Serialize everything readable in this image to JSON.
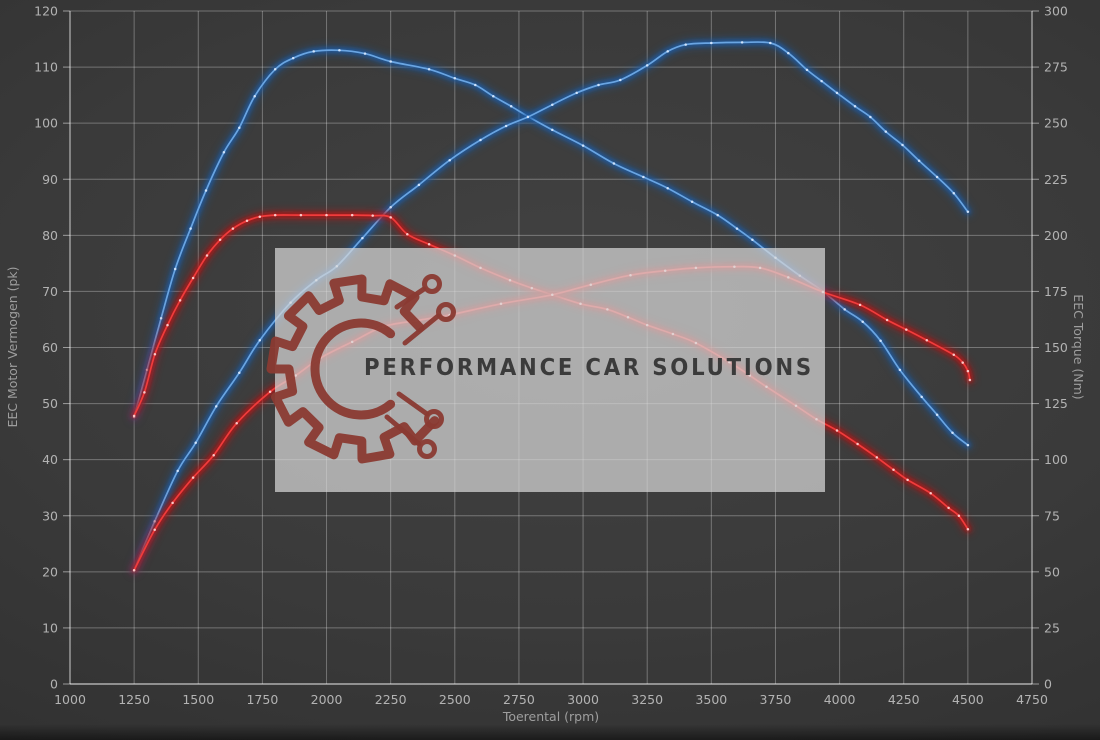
{
  "watermark": {
    "text": "PERFORMANCE CAR SOLUTIONS",
    "logo_icon": "gear-circuit-icon",
    "bg_color": "rgba(215,215,215,0.72)",
    "logo_color": "#8a3a32",
    "text_color": "#3b3b3b"
  },
  "axes": {
    "x": {
      "label": "Toerental (rpm)",
      "min": 1000,
      "max": 4750,
      "step": 250,
      "ticks": [
        "1000",
        "1250",
        "1500",
        "1750",
        "2000",
        "2250",
        "2500",
        "2750",
        "3000",
        "3250",
        "3500",
        "3750",
        "4000",
        "4250",
        "4500",
        "4750"
      ]
    },
    "y_left": {
      "label": "EEC Motor Vermogen (pk)",
      "min": 0,
      "max": 120,
      "step": 10,
      "ticks": [
        "0",
        "10",
        "20",
        "30",
        "40",
        "50",
        "60",
        "70",
        "80",
        "90",
        "100",
        "110",
        "120"
      ]
    },
    "y_right": {
      "label": "EEC Torque (Nm)",
      "min": 0,
      "max": 300,
      "step": 25,
      "ticks": [
        "0",
        "25",
        "50",
        "75",
        "100",
        "125",
        "150",
        "175",
        "200",
        "225",
        "250",
        "275",
        "300"
      ]
    }
  },
  "colors": {
    "background_center": "#424242",
    "background_edge": "#2b2b2b",
    "grid": "rgba(255,255,255,0.30)",
    "axis_line": "rgba(255,255,255,0.50)",
    "tick_text": "#b3b3b3",
    "axis_title": "#9e9e9e",
    "blue_curve": "#6aa5e2",
    "blue_glow": "#1d5ca6",
    "red_curve": "#f03c3c",
    "red_glow": "#b81212"
  },
  "chart_data": {
    "type": "line",
    "title": "",
    "xlabel": "Toerental (rpm)",
    "ylabel_left": "EEC Motor Vermogen (pk)",
    "ylabel_right": "EEC Torque (Nm)",
    "x_range": [
      1000,
      4750
    ],
    "y_left_range": [
      0,
      120
    ],
    "y_right_range": [
      0,
      300
    ],
    "grid": true,
    "legend": "none",
    "peaks": {
      "power_tuned_pk": 114.3,
      "power_original_pk": 74.4,
      "torque_tuned_nm": 282.5,
      "torque_original_nm": 209
    },
    "series": [
      {
        "id": "torque-tuned-blue",
        "unit": "Nm",
        "axis": "right",
        "color": "#6aa5e2",
        "glow": "#1d5ca6",
        "dot": "#d9eaff",
        "points": [
          [
            1250,
            119
          ],
          [
            1300,
            140
          ],
          [
            1355,
            163
          ],
          [
            1410,
            185
          ],
          [
            1470,
            203
          ],
          [
            1530,
            220
          ],
          [
            1600,
            237
          ],
          [
            1660,
            248
          ],
          [
            1720,
            262
          ],
          [
            1800,
            274
          ],
          [
            1870,
            279
          ],
          [
            1950,
            282
          ],
          [
            2050,
            282.5
          ],
          [
            2150,
            281
          ],
          [
            2250,
            277.5
          ],
          [
            2400,
            274
          ],
          [
            2500,
            270
          ],
          [
            2580,
            267
          ],
          [
            2650,
            262
          ],
          [
            2720,
            257.5
          ],
          [
            2785,
            253
          ],
          [
            2880,
            247
          ],
          [
            3000,
            240
          ],
          [
            3120,
            232
          ],
          [
            3235,
            226
          ],
          [
            3330,
            221
          ],
          [
            3425,
            215
          ],
          [
            3525,
            209
          ],
          [
            3600,
            203
          ],
          [
            3660,
            198
          ],
          [
            3750,
            190
          ],
          [
            3845,
            182
          ],
          [
            3935,
            175
          ],
          [
            4020,
            167
          ],
          [
            4090,
            161.5
          ],
          [
            4160,
            153
          ],
          [
            4235,
            140
          ],
          [
            4320,
            128
          ],
          [
            4380,
            120
          ],
          [
            4440,
            112
          ],
          [
            4500,
            106.5
          ]
        ]
      },
      {
        "id": "power-tuned-blue",
        "unit": "pk",
        "axis": "left",
        "color": "#6aa5e2",
        "glow": "#1d5ca6",
        "dot": "#d9eaff",
        "points": [
          [
            1250,
            20.3
          ],
          [
            1330,
            29
          ],
          [
            1420,
            38
          ],
          [
            1490,
            43
          ],
          [
            1570,
            49.5
          ],
          [
            1660,
            55.5
          ],
          [
            1740,
            61.3
          ],
          [
            1860,
            68
          ],
          [
            1960,
            72
          ],
          [
            2040,
            74.5
          ],
          [
            2140,
            79.5
          ],
          [
            2250,
            85
          ],
          [
            2360,
            89
          ],
          [
            2480,
            93.4
          ],
          [
            2600,
            97
          ],
          [
            2700,
            99.5
          ],
          [
            2785,
            101.1
          ],
          [
            2880,
            103.3
          ],
          [
            2975,
            105.4
          ],
          [
            3060,
            106.8
          ],
          [
            3145,
            107.7
          ],
          [
            3250,
            110.3
          ],
          [
            3330,
            112.8
          ],
          [
            3400,
            114
          ],
          [
            3500,
            114.3
          ],
          [
            3620,
            114.4
          ],
          [
            3730,
            114.3
          ],
          [
            3800,
            112.5
          ],
          [
            3873,
            109.5
          ],
          [
            3930,
            107.5
          ],
          [
            3990,
            105.4
          ],
          [
            4060,
            103
          ],
          [
            4120,
            101.1
          ],
          [
            4180,
            98.5
          ],
          [
            4245,
            96.1
          ],
          [
            4310,
            93.3
          ],
          [
            4380,
            90.4
          ],
          [
            4445,
            87.5
          ],
          [
            4500,
            84.2
          ]
        ]
      },
      {
        "id": "torque-original-red",
        "unit": "Nm",
        "axis": "right",
        "color": "#f03c3c",
        "glow": "#b81212",
        "dot": "#ffd6d6",
        "points": [
          [
            1250,
            119.5
          ],
          [
            1290,
            130
          ],
          [
            1331,
            147
          ],
          [
            1380,
            160
          ],
          [
            1429,
            171
          ],
          [
            1480,
            181
          ],
          [
            1534,
            191
          ],
          [
            1585,
            198
          ],
          [
            1635,
            203
          ],
          [
            1690,
            206.5
          ],
          [
            1740,
            208.3
          ],
          [
            1800,
            209
          ],
          [
            1900,
            209
          ],
          [
            2000,
            209
          ],
          [
            2100,
            209
          ],
          [
            2180,
            208.8
          ],
          [
            2250,
            208
          ],
          [
            2315,
            200.5
          ],
          [
            2400,
            196
          ],
          [
            2500,
            191
          ],
          [
            2600,
            185.5
          ],
          [
            2715,
            180
          ],
          [
            2800,
            176.5
          ],
          [
            2880,
            173.5
          ],
          [
            2990,
            169.5
          ],
          [
            3095,
            167
          ],
          [
            3175,
            163.5
          ],
          [
            3250,
            160
          ],
          [
            3350,
            156
          ],
          [
            3440,
            152
          ],
          [
            3570,
            143.5
          ],
          [
            3650,
            137.5
          ],
          [
            3715,
            132.5
          ],
          [
            3830,
            124
          ],
          [
            3910,
            118
          ],
          [
            3990,
            113
          ],
          [
            4070,
            107
          ],
          [
            4145,
            101
          ],
          [
            4210,
            95.5
          ],
          [
            4265,
            91
          ],
          [
            4355,
            85
          ],
          [
            4425,
            78.5
          ],
          [
            4465,
            75
          ],
          [
            4500,
            69
          ]
        ]
      },
      {
        "id": "power-original-red",
        "unit": "pk",
        "axis": "left",
        "color": "#f03c3c",
        "glow": "#b81212",
        "dot": "#ffd6d6",
        "points": [
          [
            1250,
            20.3
          ],
          [
            1330,
            27.5
          ],
          [
            1400,
            32.3
          ],
          [
            1480,
            36.8
          ],
          [
            1560,
            40.8
          ],
          [
            1650,
            46.5
          ],
          [
            1780,
            52.1
          ],
          [
            1880,
            55
          ],
          [
            1975,
            58.1
          ],
          [
            2100,
            61
          ],
          [
            2220,
            63.7
          ],
          [
            2350,
            64.8
          ],
          [
            2480,
            65.8
          ],
          [
            2680,
            67.8
          ],
          [
            2880,
            69.4
          ],
          [
            3030,
            71.2
          ],
          [
            3185,
            72.9
          ],
          [
            3320,
            73.7
          ],
          [
            3440,
            74.2
          ],
          [
            3590,
            74.4
          ],
          [
            3690,
            74.2
          ],
          [
            3800,
            72.5
          ],
          [
            3935,
            69.9
          ],
          [
            4080,
            67.6
          ],
          [
            4185,
            64.9
          ],
          [
            4260,
            63.2
          ],
          [
            4340,
            61.3
          ],
          [
            4445,
            58.7
          ],
          [
            4480,
            57.3
          ],
          [
            4500,
            55.8
          ],
          [
            4508,
            54.2
          ]
        ]
      }
    ]
  }
}
